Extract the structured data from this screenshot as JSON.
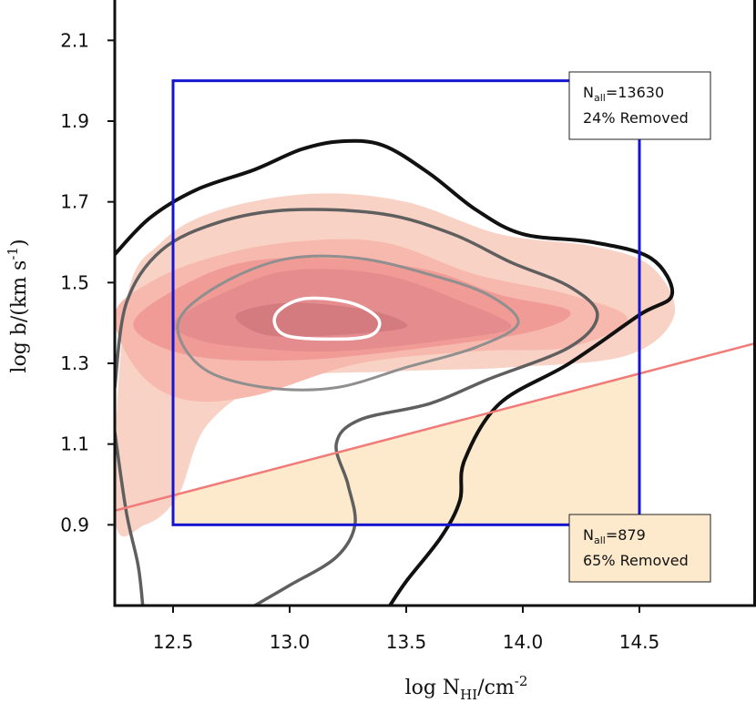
{
  "chart_data": {
    "type": "contour",
    "xlabel": {
      "prefix": "log N",
      "sub": "HI",
      "unit": "/cm",
      "sup": "-2"
    },
    "ylabel": {
      "prefix": "log b/(km s",
      "sup": "-1",
      "suffix": ")"
    },
    "xlim": [
      12.25,
      15.0
    ],
    "ylim": [
      0.7,
      2.2
    ],
    "xticks": [
      "12.5",
      "13.0",
      "13.5",
      "14.0",
      "14.5"
    ],
    "yticks": [
      "0.9",
      "1.1",
      "1.3",
      "1.5",
      "1.7",
      "1.9",
      "2.1"
    ],
    "colors": {
      "fill_levels": [
        "#f9d2c6",
        "#f7b9ad",
        "#f09b96",
        "#e58c8e",
        "#d47b80"
      ],
      "contour_outer": "#111111",
      "contour_mid": "#5f5f5f",
      "contour_inner": "#8f8f8f",
      "contour_core": "#ffffff",
      "selection_box": "#1515d0",
      "cut_line": "#f07b78",
      "removed_region": "#fde9cc"
    },
    "selection_box": {
      "x": [
        12.5,
        14.5
      ],
      "y": [
        0.9,
        2.0
      ]
    },
    "cut_line": {
      "points": [
        [
          12.25,
          0.935
        ],
        [
          15.0,
          1.35
        ]
      ]
    },
    "removed_region": {
      "x": [
        12.5,
        14.5
      ],
      "y_bottom": 0.9,
      "upper": "cut_line"
    },
    "annotations": {
      "top": {
        "n_prefix": "N",
        "n_sub": "all",
        "n_value": "=13630",
        "removed": "24% Removed"
      },
      "bottom": {
        "n_prefix": "N",
        "n_sub": "all",
        "n_value": "=879",
        "removed": "65% Removed"
      }
    },
    "filled_contours": [
      [
        [
          12.25,
          0.92
        ],
        [
          12.3,
          1.45
        ],
        [
          12.45,
          1.6
        ],
        [
          12.7,
          1.68
        ],
        [
          13.1,
          1.72
        ],
        [
          13.5,
          1.7
        ],
        [
          13.9,
          1.62
        ],
        [
          14.3,
          1.59
        ],
        [
          14.55,
          1.54
        ],
        [
          14.65,
          1.42
        ],
        [
          14.45,
          1.32
        ],
        [
          13.95,
          1.29
        ],
        [
          13.45,
          1.28
        ],
        [
          12.95,
          1.26
        ],
        [
          12.65,
          1.15
        ],
        [
          12.52,
          0.97
        ],
        [
          12.38,
          0.9
        ]
      ],
      [
        [
          12.25,
          1.42
        ],
        [
          12.4,
          1.5
        ],
        [
          12.65,
          1.56
        ],
        [
          13.0,
          1.6
        ],
        [
          13.4,
          1.6
        ],
        [
          13.8,
          1.52
        ],
        [
          14.2,
          1.47
        ],
        [
          14.45,
          1.41
        ],
        [
          14.2,
          1.34
        ],
        [
          13.8,
          1.33
        ],
        [
          13.3,
          1.3
        ],
        [
          12.85,
          1.22
        ],
        [
          12.55,
          1.21
        ],
        [
          12.35,
          1.28
        ]
      ],
      [
        [
          12.33,
          1.4
        ],
        [
          12.5,
          1.48
        ],
        [
          12.8,
          1.55
        ],
        [
          13.2,
          1.56
        ],
        [
          13.6,
          1.53
        ],
        [
          13.9,
          1.47
        ],
        [
          14.2,
          1.43
        ],
        [
          14.05,
          1.38
        ],
        [
          13.6,
          1.34
        ],
        [
          13.1,
          1.31
        ],
        [
          12.7,
          1.31
        ],
        [
          12.45,
          1.34
        ]
      ],
      [
        [
          12.5,
          1.4
        ],
        [
          12.7,
          1.47
        ],
        [
          13.0,
          1.53
        ],
        [
          13.4,
          1.52
        ],
        [
          13.75,
          1.45
        ],
        [
          13.95,
          1.39
        ],
        [
          13.7,
          1.36
        ],
        [
          13.2,
          1.33
        ],
        [
          12.8,
          1.34
        ],
        [
          12.6,
          1.36
        ]
      ],
      [
        [
          12.77,
          1.42
        ],
        [
          13.0,
          1.45
        ],
        [
          13.35,
          1.43
        ],
        [
          13.5,
          1.39
        ],
        [
          13.2,
          1.37
        ],
        [
          12.9,
          1.37
        ]
      ]
    ],
    "contour_lines": [
      {
        "level": "outer",
        "width": 4,
        "closed": false,
        "points": [
          [
            12.25,
            1.57
          ],
          [
            12.4,
            1.66
          ],
          [
            12.6,
            1.73
          ],
          [
            12.85,
            1.78
          ],
          [
            13.05,
            1.83
          ],
          [
            13.22,
            1.85
          ],
          [
            13.4,
            1.84
          ],
          [
            13.6,
            1.77
          ],
          [
            13.8,
            1.68
          ],
          [
            14.0,
            1.62
          ],
          [
            14.3,
            1.6
          ],
          [
            14.55,
            1.56
          ],
          [
            14.64,
            1.47
          ],
          [
            14.5,
            1.42
          ],
          [
            14.2,
            1.3
          ],
          [
            13.9,
            1.2
          ],
          [
            13.75,
            1.06
          ],
          [
            13.73,
            0.96
          ],
          [
            13.65,
            0.87
          ],
          [
            13.5,
            0.76
          ],
          [
            13.43,
            0.7
          ]
        ]
      },
      {
        "level": "mid",
        "width": 3.5,
        "closed": false,
        "points": [
          [
            12.37,
            0.7
          ],
          [
            12.35,
            0.8
          ],
          [
            12.3,
            0.93
          ],
          [
            12.25,
            1.13
          ]
        ]
      },
      {
        "level": "mid",
        "width": 3.5,
        "closed": false,
        "points": [
          [
            12.25,
            1.24
          ],
          [
            12.3,
            1.45
          ],
          [
            12.45,
            1.58
          ],
          [
            12.7,
            1.65
          ],
          [
            13.0,
            1.68
          ],
          [
            13.4,
            1.67
          ],
          [
            13.7,
            1.62
          ],
          [
            13.95,
            1.55
          ],
          [
            14.2,
            1.49
          ],
          [
            14.32,
            1.42
          ],
          [
            14.2,
            1.34
          ],
          [
            13.85,
            1.26
          ],
          [
            13.6,
            1.2
          ],
          [
            13.3,
            1.16
          ],
          [
            13.2,
            1.1
          ],
          [
            13.25,
            1.0
          ],
          [
            13.28,
            0.9
          ],
          [
            13.2,
            0.82
          ],
          [
            13.0,
            0.75
          ],
          [
            12.85,
            0.7
          ]
        ]
      },
      {
        "level": "inner",
        "width": 3,
        "closed": true,
        "points": [
          [
            12.55,
            1.43
          ],
          [
            12.75,
            1.51
          ],
          [
            13.0,
            1.56
          ],
          [
            13.3,
            1.56
          ],
          [
            13.6,
            1.52
          ],
          [
            13.85,
            1.47
          ],
          [
            13.98,
            1.4
          ],
          [
            13.8,
            1.34
          ],
          [
            13.5,
            1.29
          ],
          [
            13.2,
            1.24
          ],
          [
            12.9,
            1.24
          ],
          [
            12.65,
            1.28
          ],
          [
            12.53,
            1.36
          ]
        ]
      },
      {
        "level": "core",
        "width": 3.5,
        "closed": true,
        "points": [
          [
            12.94,
            1.42
          ],
          [
            13.06,
            1.46
          ],
          [
            13.26,
            1.45
          ],
          [
            13.38,
            1.41
          ],
          [
            13.35,
            1.37
          ],
          [
            13.2,
            1.36
          ],
          [
            12.98,
            1.37
          ]
        ]
      }
    ]
  }
}
